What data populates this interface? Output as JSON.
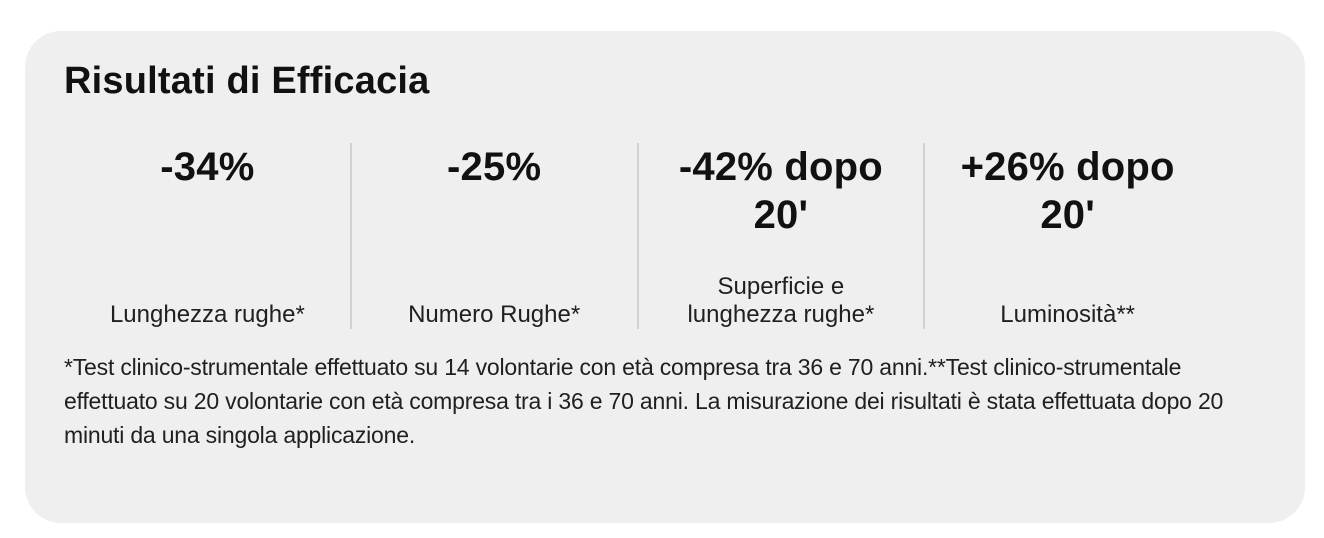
{
  "card": {
    "title": "Risultati di Efficacia",
    "stats": [
      {
        "value": "-34%",
        "label": "Lunghezza rughe*"
      },
      {
        "value": "-25%",
        "label": "Numero Rughe*"
      },
      {
        "value": "-42% dopo 20'",
        "label": "Superficie e lunghezza rughe*"
      },
      {
        "value": "+26% dopo 20'",
        "label": "Luminosità**"
      }
    ],
    "footnote": "*Test clinico-strumentale effettuato su 14 volontarie con età compresa tra 36 e 70 anni.**Test clinico-strumentale effettuato su 20 volontarie con età compresa tra i 36 e 70 anni. La misurazione dei risultati è stata effettuata dopo 20 minuti da una singola applicazione."
  },
  "colors": {
    "card_background": "#efefef",
    "text": "#111111",
    "divider": "#d2d2d2"
  },
  "chart_data": {
    "type": "table",
    "title": "Risultati di Efficacia",
    "categories": [
      "Lunghezza rughe*",
      "Numero Rughe*",
      "Superficie e lunghezza rughe*",
      "Luminosità**"
    ],
    "values": [
      -34,
      -25,
      -42,
      26
    ],
    "value_labels": [
      "-34%",
      "-25%",
      "-42% dopo 20'",
      "+26% dopo 20'"
    ],
    "unit": "%"
  }
}
